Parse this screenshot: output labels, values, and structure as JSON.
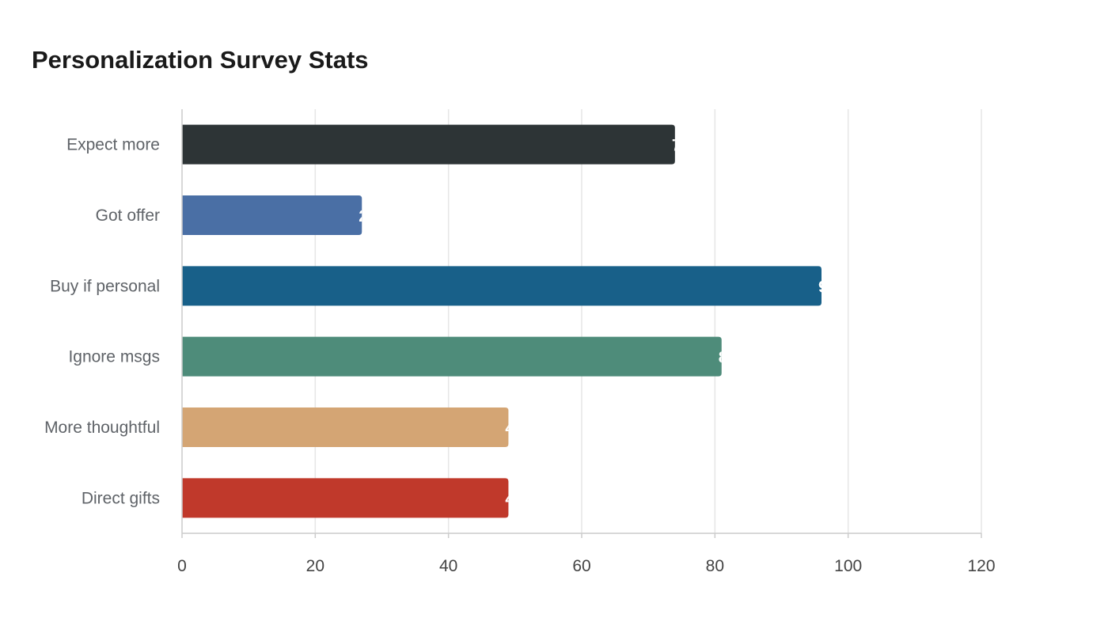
{
  "chart_data": {
    "type": "bar",
    "orientation": "horizontal",
    "title": "Personalization Survey Stats",
    "categories": [
      "Expect more",
      "Got offer",
      "Buy if personal",
      "Ignore msgs",
      "More thoughtful",
      "Direct gifts"
    ],
    "values": [
      74,
      27,
      96,
      81,
      49,
      49
    ],
    "colors": [
      "#2d3436",
      "#4a6fa5",
      "#186089",
      "#4e8c7a",
      "#d4a574",
      "#c0392b"
    ],
    "xlim": [
      0,
      120
    ],
    "xticks": [
      0,
      20,
      40,
      60,
      80,
      100,
      120
    ],
    "xlabel": "",
    "ylabel": "",
    "grid": "vertical",
    "legend": "none"
  }
}
